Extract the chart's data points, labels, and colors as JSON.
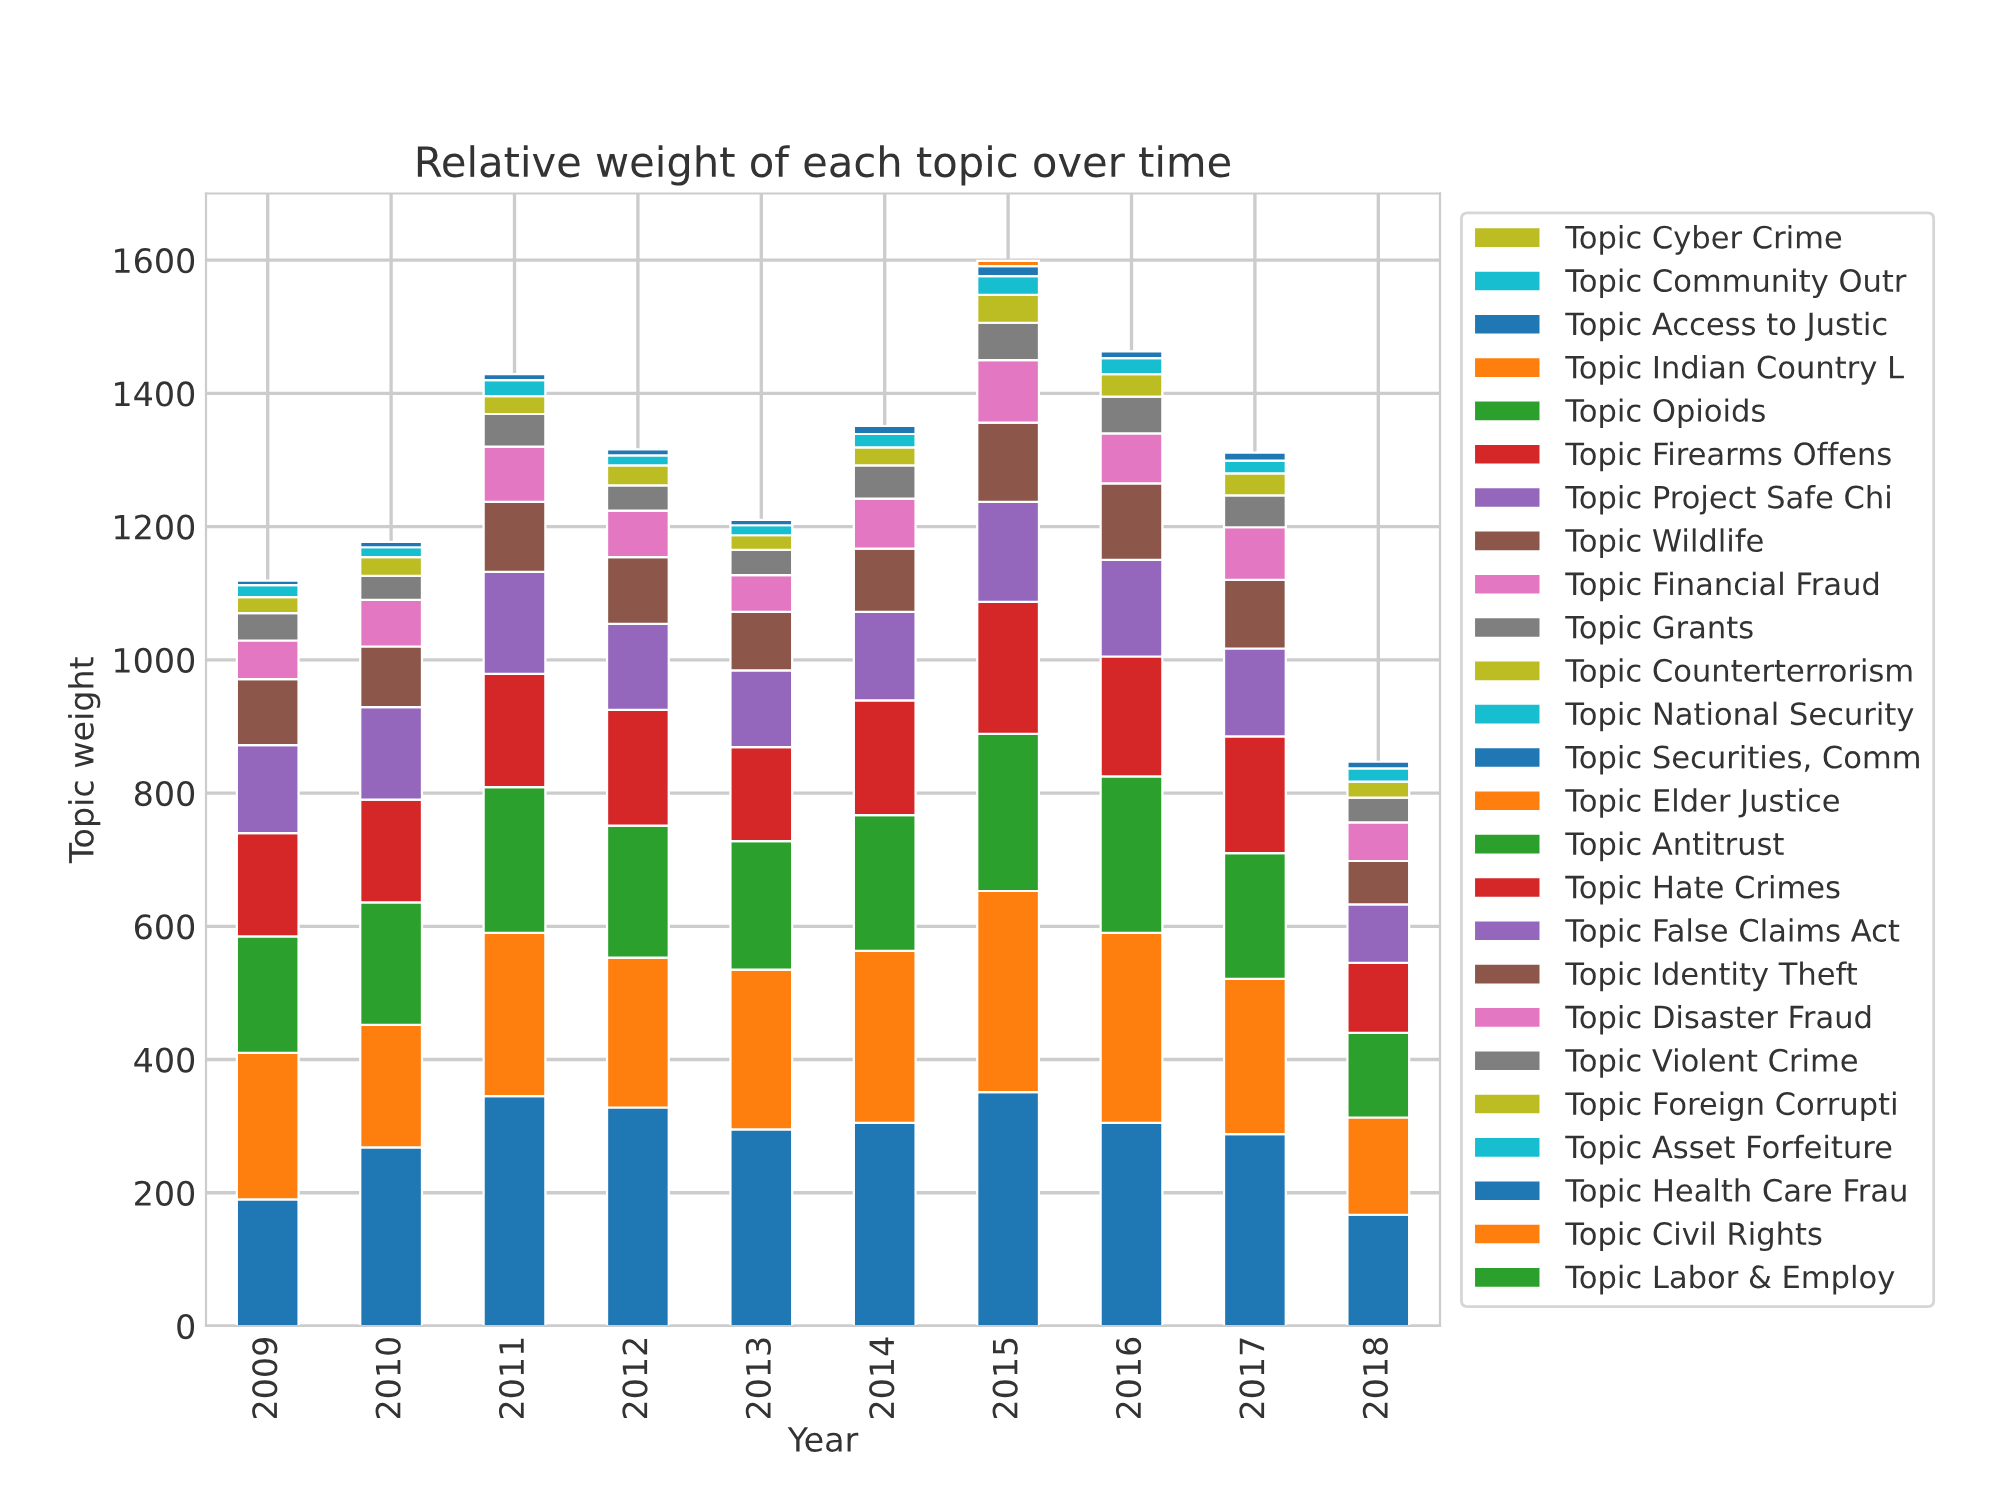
{
  "chart_data": {
    "type": "bar",
    "stacked": true,
    "title": "Relative weight of each topic over time",
    "xlabel": "Year",
    "ylabel": "Topic weight",
    "categories": [
      "2009",
      "2010",
      "2011",
      "2012",
      "2013",
      "2014",
      "2015",
      "2016",
      "2017",
      "2018"
    ],
    "ylim": [
      0,
      1700
    ],
    "yticks": [
      0,
      200,
      400,
      600,
      800,
      1000,
      1200,
      1400,
      1600
    ],
    "grid": true,
    "legend": "right",
    "series": [
      {
        "color": "#1f77b4",
        "values": [
          190,
          268,
          345,
          328,
          295,
          305,
          351,
          305,
          288,
          167
        ]
      },
      {
        "color": "#ff7f0e",
        "values": [
          220,
          184,
          245,
          225,
          240,
          258,
          302,
          285,
          233,
          146
        ]
      },
      {
        "color": "#2ca02c",
        "values": [
          175,
          184,
          219,
          198,
          193,
          204,
          236,
          235,
          189,
          127
        ]
      },
      {
        "color": "#d62728",
        "values": [
          155,
          154,
          170,
          174,
          141,
          172,
          198,
          180,
          175,
          105
        ]
      },
      {
        "color": "#9467bd",
        "values": [
          132,
          139,
          153,
          129,
          115,
          133,
          150,
          145,
          132,
          88
        ]
      },
      {
        "color": "#8c564b",
        "values": [
          99,
          91,
          105,
          100,
          88,
          95,
          119,
          115,
          103,
          65
        ]
      },
      {
        "color": "#e377c2",
        "values": [
          58,
          70,
          83,
          70,
          55,
          75,
          94,
          75,
          79,
          58
        ]
      },
      {
        "color": "#7f7f7f",
        "values": [
          41,
          36,
          49,
          38,
          38,
          50,
          56,
          55,
          48,
          37
        ]
      },
      {
        "name": "Topic Cyber Crime",
        "color": "#bcbd22",
        "values": [
          24,
          28,
          27,
          30,
          22,
          27,
          42,
          34,
          33,
          24
        ]
      },
      {
        "name": "Topic Community Outr",
        "color": "#17becf",
        "values": [
          18,
          15,
          24,
          15,
          15,
          20,
          28,
          24,
          19,
          20
        ]
      },
      {
        "name": "Topic Access to Justic",
        "color": "#1f77b4",
        "values": [
          7,
          8,
          9,
          9,
          8,
          12,
          15,
          10,
          12,
          10
        ]
      },
      {
        "name": "Topic Indian Country L",
        "color": "#ff7f0e",
        "values": [
          null,
          null,
          null,
          null,
          null,
          null,
          8,
          null,
          null,
          null
        ]
      },
      {
        "name": "Topic Opioids",
        "color": "#2ca02c",
        "values": [
          null,
          null,
          null,
          null,
          null,
          null,
          null,
          null,
          null,
          null
        ]
      },
      {
        "name": "Topic Firearms Offens",
        "color": "#d62728",
        "values": [
          null,
          null,
          null,
          null,
          null,
          null,
          null,
          null,
          null,
          null
        ]
      },
      {
        "name": "Topic Project Safe Chi",
        "color": "#9467bd",
        "values": [
          null,
          null,
          null,
          null,
          null,
          null,
          null,
          null,
          null,
          null
        ]
      },
      {
        "name": "Topic Wildlife",
        "color": "#8c564b",
        "values": [
          null,
          null,
          null,
          null,
          null,
          null,
          null,
          null,
          null,
          null
        ]
      },
      {
        "name": "Topic Financial Fraud",
        "color": "#e377c2",
        "values": [
          null,
          null,
          null,
          null,
          null,
          null,
          null,
          null,
          null,
          null
        ]
      },
      {
        "name": "Topic Grants",
        "color": "#7f7f7f",
        "values": [
          null,
          null,
          null,
          null,
          null,
          null,
          null,
          null,
          null,
          null
        ]
      },
      {
        "name": "Topic Counterterrorism",
        "color": "#bcbd22",
        "values": [
          null,
          null,
          null,
          null,
          null,
          null,
          null,
          null,
          null,
          null
        ]
      },
      {
        "name": "Topic National Security",
        "color": "#17becf",
        "values": [
          null,
          null,
          null,
          null,
          null,
          null,
          null,
          null,
          null,
          null
        ]
      },
      {
        "name": "Topic Securities, Comm",
        "color": "#1f77b4",
        "values": [
          null,
          null,
          null,
          null,
          null,
          null,
          null,
          null,
          null,
          null
        ]
      },
      {
        "name": "Topic Elder Justice",
        "color": "#ff7f0e",
        "values": [
          null,
          null,
          null,
          null,
          null,
          null,
          null,
          null,
          null,
          null
        ]
      },
      {
        "name": "Topic Antitrust",
        "color": "#2ca02c",
        "values": [
          null,
          null,
          null,
          null,
          null,
          null,
          null,
          null,
          null,
          null
        ]
      },
      {
        "name": "Topic Hate Crimes",
        "color": "#d62728",
        "values": [
          null,
          null,
          null,
          null,
          null,
          null,
          null,
          null,
          null,
          null
        ]
      },
      {
        "name": "Topic False Claims Act",
        "color": "#9467bd",
        "values": [
          null,
          null,
          null,
          null,
          null,
          null,
          null,
          null,
          null,
          null
        ]
      },
      {
        "name": "Topic Identity Theft",
        "color": "#8c564b",
        "values": [
          null,
          null,
          null,
          null,
          null,
          null,
          null,
          null,
          null,
          null
        ]
      },
      {
        "name": "Topic Disaster Fraud",
        "color": "#e377c2",
        "values": [
          null,
          null,
          null,
          null,
          null,
          null,
          null,
          null,
          null,
          null
        ]
      },
      {
        "name": "Topic Violent Crime",
        "color": "#7f7f7f",
        "values": [
          null,
          null,
          null,
          null,
          null,
          null,
          null,
          null,
          null,
          null
        ]
      },
      {
        "name": "Topic Foreign Corrupti",
        "color": "#bcbd22",
        "values": [
          null,
          null,
          null,
          null,
          null,
          null,
          null,
          null,
          null,
          null
        ]
      },
      {
        "name": "Topic Asset Forfeiture",
        "color": "#17becf",
        "values": [
          null,
          null,
          null,
          null,
          null,
          null,
          null,
          null,
          null,
          null
        ]
      },
      {
        "name": "Topic Health Care Frau",
        "color": "#1f77b4",
        "values": [
          null,
          null,
          null,
          null,
          null,
          null,
          null,
          null,
          null,
          null
        ]
      },
      {
        "name": "Topic Civil Rights",
        "color": "#ff7f0e",
        "values": [
          null,
          null,
          null,
          null,
          null,
          null,
          null,
          null,
          null,
          null
        ]
      },
      {
        "name": "Topic Labor & Employ",
        "color": "#2ca02c",
        "values": [
          null,
          null,
          null,
          null,
          null,
          null,
          null,
          null,
          null,
          null
        ]
      }
    ]
  }
}
